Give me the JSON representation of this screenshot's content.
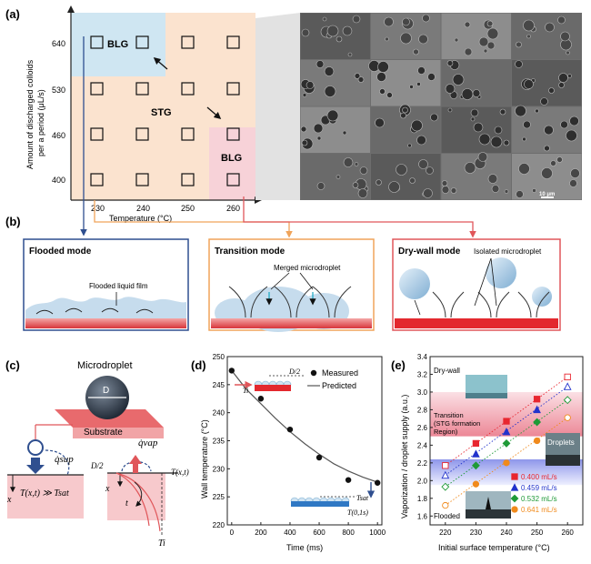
{
  "panel_labels": {
    "a": "(a)",
    "b": "(b)",
    "c": "(c)",
    "d": "(d)",
    "e": "(e)"
  },
  "panel_a": {
    "y_axis_label_line1": "Amount of discharged colloids",
    "y_axis_label_line2": "per a period (μL/s)",
    "x_axis_label": "Temperature (°C)",
    "x_ticks": [
      "230",
      "240",
      "250",
      "260"
    ],
    "y_ticks": [
      "640",
      "530",
      "460",
      "400"
    ],
    "region_blg_top": "BLG",
    "region_stg": "STG",
    "region_blg_bottom": "BLG",
    "scale_bar": "10 μm",
    "colors": {
      "blg_top": "#cfe6f2",
      "stg": "#fbe3cf",
      "blg_bottom": "#f7d2d8",
      "sem_bg": "#6d6d6d"
    }
  },
  "panel_b": {
    "modes": [
      {
        "title": "Flooded mode",
        "annotation": "Flooded liquid film",
        "border": "#2f4f8f"
      },
      {
        "title": "Transition mode",
        "annotation": "Merged microdroplet",
        "border": "#f0a45a"
      },
      {
        "title": "Dry-wall mode",
        "annotation": "Isolated microdroplet",
        "border": "#e0565a"
      }
    ]
  },
  "panel_c": {
    "title": "Microdroplet",
    "diameter_label": "D",
    "substrate_label": "Substrate",
    "q_sup": "q̇sup",
    "q_vap": "q̇vap",
    "left_condition": "T(x,t) ≫ Tsat",
    "half_d": "D/2",
    "t_label": "T(x,t)",
    "x_label": "x",
    "time_label": "t",
    "ti_label": "Ti"
  },
  "chart_data": [
    {
      "type": "scatter",
      "title": "",
      "xlabel": "Time (ms)",
      "ylabel": "Wall temperature (°C)",
      "xlim": [
        -30,
        1030
      ],
      "ylim": [
        220,
        250
      ],
      "x_ticks": [
        "0",
        "200",
        "400",
        "600",
        "800",
        "1000"
      ],
      "y_ticks": [
        "220",
        "225",
        "230",
        "235",
        "240",
        "245",
        "250"
      ],
      "series": [
        {
          "name": "Measured",
          "x": [
            0,
            200,
            400,
            600,
            800,
            1000
          ],
          "y": [
            247.5,
            242.5,
            237,
            232,
            228,
            227.5
          ]
        },
        {
          "name": "Predicted",
          "x": [
            0,
            100,
            200,
            300,
            400,
            500,
            600,
            700,
            800,
            900,
            1000
          ],
          "y": [
            247.5,
            244.2,
            241.6,
            239.0,
            236.6,
            234.5,
            232.6,
            230.9,
            229.6,
            228.5,
            227.6
          ]
        }
      ],
      "annotations": {
        "half_d": "D/2",
        "ti": "Ti",
        "tsat": "Tsat",
        "t01": "T(0,1s)"
      }
    },
    {
      "type": "scatter",
      "title": "",
      "xlabel": "Initial surface temperature (°C)",
      "ylabel": "Vaporization / droplet supply (a.u.)",
      "xlim": [
        215,
        265
      ],
      "ylim": [
        1.5,
        3.4
      ],
      "x_ticks": [
        "220",
        "230",
        "240",
        "250",
        "260"
      ],
      "y_ticks": [
        "1.6",
        "1.8",
        "2.0",
        "2.2",
        "2.4",
        "2.6",
        "2.8",
        "3.0",
        "3.2",
        "3.4"
      ],
      "bands": [
        {
          "label": "Transition (STG formation Region)",
          "y0": 2.5,
          "y1": 3.0,
          "color": "#f3b8c2"
        },
        {
          "label": "",
          "y0": 1.95,
          "y1": 2.24,
          "color": "#c3c8f2"
        }
      ],
      "region_labels": {
        "dry_wall": "Dry-wall",
        "transition_line1": "Transition",
        "transition_line2": "(STG formation",
        "transition_line3": "Region)",
        "droplets": "Droplets",
        "flooded": "Flooded"
      },
      "series": [
        {
          "name": "0.400 mL/s",
          "marker": "square",
          "color": "#e8262f",
          "x": [
            220,
            230,
            240,
            250,
            260
          ],
          "y": [
            2.17,
            2.42,
            2.67,
            2.92,
            3.17
          ]
        },
        {
          "name": "0.459 mL/s",
          "marker": "triangle",
          "color": "#2233cc",
          "x": [
            220,
            230,
            240,
            250,
            260
          ],
          "y": [
            2.06,
            2.3,
            2.55,
            2.8,
            3.06
          ]
        },
        {
          "name": "0.532 mL/s",
          "marker": "diamond",
          "color": "#1f9a37",
          "x": [
            220,
            230,
            240,
            250,
            260
          ],
          "y": [
            1.93,
            2.17,
            2.42,
            2.66,
            2.91
          ]
        },
        {
          "name": "0.641 mL/s",
          "marker": "circle",
          "color": "#f08a1c",
          "x": [
            220,
            230,
            240,
            250,
            260
          ],
          "y": [
            1.72,
            1.96,
            2.2,
            2.45,
            2.71
          ]
        }
      ]
    }
  ]
}
